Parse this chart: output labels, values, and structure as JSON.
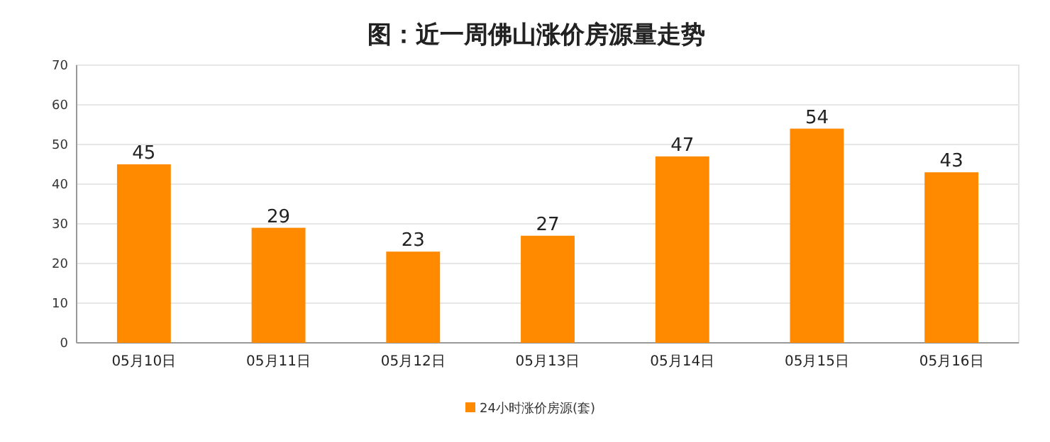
{
  "chart_data": {
    "type": "bar",
    "title": "图：近一周佛山涨价房源量走势",
    "categories": [
      "05月10日",
      "05月11日",
      "05月12日",
      "05月13日",
      "05月14日",
      "05月15日",
      "05月16日"
    ],
    "series": [
      {
        "name": "24小时涨价房源(套)",
        "color": "#ff8a00",
        "values": [
          45,
          29,
          23,
          27,
          47,
          54,
          43
        ]
      }
    ],
    "ylim": [
      0,
      70
    ],
    "yticks": [
      0,
      10,
      20,
      30,
      40,
      50,
      60,
      70
    ],
    "grid": "y",
    "data_labels": true,
    "legend": "bottom"
  }
}
